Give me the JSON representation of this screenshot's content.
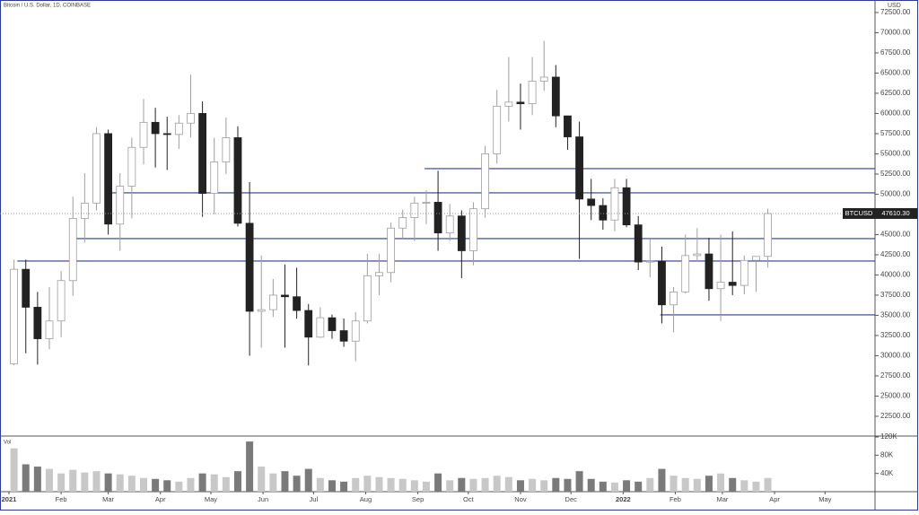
{
  "chart_data": {
    "type": "candlestick",
    "title": "Bitcoin / U.S. Dollar, 1D, COINBASE",
    "price_axis_label": "USD",
    "symbol": "BTCUSD",
    "last_price": {
      "value": 47610.3,
      "label": "47610.30"
    },
    "volume_label": "Vol",
    "up_color": "#ffffff",
    "up_outline": "#9e9e9e",
    "down_color": "#222222",
    "volume_color": "#7a7a7a",
    "level_color": "#2b3d91",
    "x": [
      0,
      7,
      14,
      21,
      28,
      35,
      42,
      49,
      56,
      63,
      70,
      77,
      84,
      91,
      98,
      105,
      112,
      119,
      126,
      133,
      140,
      147,
      154,
      161,
      168,
      175,
      182,
      189,
      196,
      203,
      210,
      217,
      224,
      231,
      238,
      245,
      252,
      259,
      266,
      273,
      280,
      287,
      294,
      301,
      308,
      315,
      322,
      329,
      336,
      343,
      350,
      357,
      364,
      371,
      378,
      385,
      392,
      399,
      406,
      413,
      420,
      427,
      434,
      441,
      448
    ],
    "open": [
      29000,
      40700,
      36000,
      32100,
      34300,
      39300,
      47000,
      48900,
      57500,
      46300,
      51000,
      55800,
      58900,
      57500,
      57400,
      58800,
      60000,
      50100,
      54000,
      57000,
      46400,
      35500,
      35700,
      37500,
      37300,
      35600,
      32300,
      34700,
      33100,
      31800,
      34300,
      39900,
      40300,
      45800,
      47100,
      48900,
      49000,
      45200,
      47300,
      43000,
      48200,
      55000,
      60900,
      61400,
      61200,
      64000,
      64500,
      59700,
      57100,
      49400,
      48600,
      46800,
      50800,
      46200,
      41600,
      41700,
      36300,
      37900,
      42400,
      42600,
      38300,
      39100,
      38700,
      41800,
      42300
    ],
    "high": [
      41900,
      41900,
      37900,
      38500,
      40500,
      49700,
      52600,
      58300,
      58000,
      52600,
      57000,
      61800,
      60700,
      59600,
      59800,
      64800,
      61500,
      57000,
      59500,
      58400,
      51500,
      42400,
      39500,
      41300,
      40900,
      36400,
      36000,
      35100,
      34600,
      35400,
      42600,
      42600,
      46500,
      48100,
      49700,
      50500,
      52900,
      48800,
      48000,
      49000,
      56000,
      62900,
      67000,
      63700,
      67000,
      69000,
      66000,
      59700,
      59000,
      51900,
      49500,
      51900,
      51900,
      47300,
      44400,
      43500,
      38500,
      45000,
      45800,
      44600,
      45000,
      45400,
      42400,
      42300,
      48200
    ],
    "low": [
      28800,
      30300,
      28900,
      30800,
      32300,
      37400,
      44000,
      48000,
      45000,
      43000,
      47000,
      53700,
      53300,
      53000,
      55600,
      57000,
      47200,
      47500,
      52500,
      46000,
      30000,
      31000,
      34800,
      31000,
      34600,
      28800,
      32200,
      32100,
      31100,
      29300,
      34000,
      37500,
      39100,
      44500,
      44200,
      46300,
      43000,
      44200,
      39600,
      41200,
      47100,
      53800,
      59000,
      58000,
      59800,
      62800,
      58300,
      55500,
      42000,
      46800,
      45600,
      45400,
      45900,
      40600,
      39700,
      34000,
      32900,
      37700,
      41700,
      36800,
      34300,
      37500,
      37600,
      37900,
      40900
    ],
    "close": [
      40700,
      36000,
      32100,
      34300,
      39300,
      47000,
      48900,
      57500,
      46300,
      51000,
      55800,
      58900,
      57500,
      57400,
      58800,
      60000,
      50100,
      54000,
      57000,
      46400,
      35500,
      35700,
      37500,
      37300,
      35600,
      32300,
      34700,
      33100,
      31800,
      34300,
      39900,
      40300,
      45800,
      47100,
      48900,
      49000,
      45200,
      47300,
      43000,
      48200,
      55000,
      60900,
      61400,
      61200,
      64000,
      64500,
      59700,
      57100,
      49400,
      48600,
      46800,
      50800,
      46200,
      41600,
      41700,
      36300,
      37900,
      42400,
      42600,
      38300,
      39100,
      38700,
      41800,
      42300,
      47610.3
    ],
    "volume": [
      95000,
      60000,
      55000,
      50000,
      40000,
      48000,
      42000,
      45000,
      40000,
      38000,
      35000,
      30000,
      28000,
      25000,
      22000,
      30000,
      40000,
      38000,
      32000,
      45000,
      110000,
      55000,
      40000,
      45000,
      35000,
      50000,
      30000,
      25000,
      22000,
      30000,
      35000,
      32000,
      30000,
      28000,
      25000,
      22000,
      40000,
      25000,
      30000,
      28000,
      30000,
      35000,
      32000,
      25000,
      28000,
      25000,
      30000,
      28000,
      45000,
      28000,
      22000,
      20000,
      25000,
      22000,
      30000,
      50000,
      35000,
      30000,
      28000,
      35000,
      40000,
      30000,
      25000,
      22000,
      30000
    ],
    "levels": [
      {
        "value": 53167,
        "start": 247
      },
      {
        "value": 50167,
        "start": 60
      },
      {
        "value": 44500,
        "start": 40
      },
      {
        "value": 41722,
        "start": 5
      },
      {
        "value": 35056,
        "start": 387
      }
    ],
    "xlim": [
      -5.33,
      514.7
    ],
    "xticks": [
      {
        "value": 0,
        "label": "2021"
      },
      {
        "value": 31,
        "label": "Feb"
      },
      {
        "value": 59,
        "label": "Mar"
      },
      {
        "value": 90,
        "label": "Apr"
      },
      {
        "value": 120,
        "label": "May"
      },
      {
        "value": 151,
        "label": "Jun"
      },
      {
        "value": 181,
        "label": "Jul"
      },
      {
        "value": 212,
        "label": "Aug"
      },
      {
        "value": 243,
        "label": "Sep"
      },
      {
        "value": 273,
        "label": "Oct"
      },
      {
        "value": 304,
        "label": "Nov"
      },
      {
        "value": 334,
        "label": "Dec"
      },
      {
        "value": 365,
        "label": "2022"
      },
      {
        "value": 396,
        "label": "Feb"
      },
      {
        "value": 424,
        "label": "Mar"
      },
      {
        "value": 455,
        "label": "Apr"
      },
      {
        "value": 485,
        "label": "May"
      }
    ],
    "ylim": [
      20050,
      74050
    ],
    "yticks": [
      {
        "value": 22500,
        "label": "22500.00"
      },
      {
        "value": 25000,
        "label": "25000.00"
      },
      {
        "value": 27500,
        "label": "27500.00"
      },
      {
        "value": 30000,
        "label": "30000.00"
      },
      {
        "value": 32500,
        "label": "32500.00"
      },
      {
        "value": 35000,
        "label": "35000.00"
      },
      {
        "value": 37500,
        "label": "37500.00"
      },
      {
        "value": 40000,
        "label": "40000.00"
      },
      {
        "value": 42500,
        "label": "42500.00"
      },
      {
        "value": 45000,
        "label": "45000.00"
      },
      {
        "value": 47500,
        "label": "47500.00"
      },
      {
        "value": 50000,
        "label": "50000.00"
      },
      {
        "value": 52500,
        "label": "52500.00"
      },
      {
        "value": 55000,
        "label": "55000.00"
      },
      {
        "value": 57500,
        "label": "57500.00"
      },
      {
        "value": 60000,
        "label": "60000.00"
      },
      {
        "value": 62500,
        "label": "62500.00"
      },
      {
        "value": 65000,
        "label": "65000.00"
      },
      {
        "value": 67500,
        "label": "67500.00"
      },
      {
        "value": 70000,
        "label": "70000.00"
      },
      {
        "value": 72500,
        "label": "72500.00"
      }
    ],
    "volume_ylim": [
      0,
      122000
    ],
    "volume_yticks": [
      {
        "value": 40000,
        "label": "40K"
      },
      {
        "value": 80000,
        "label": "80K"
      },
      {
        "value": 120000,
        "label": "120K"
      }
    ]
  }
}
